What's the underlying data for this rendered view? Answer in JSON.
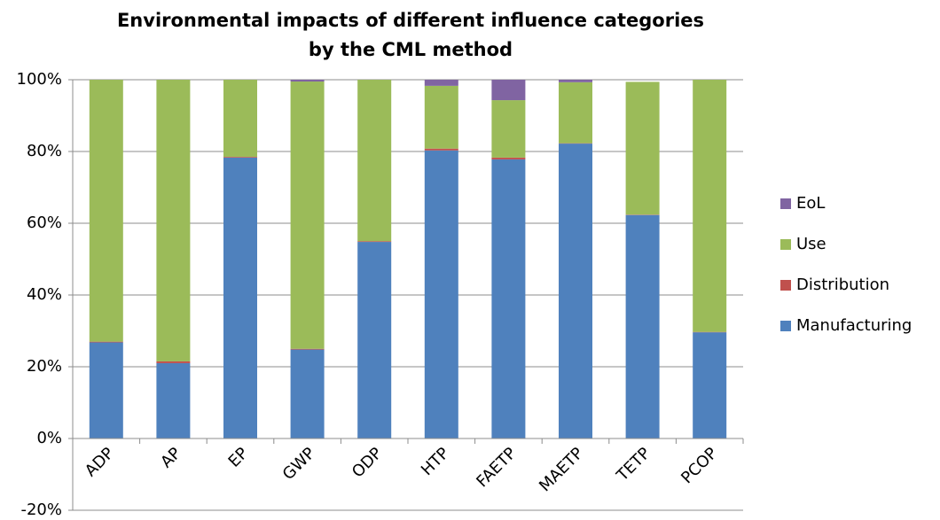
{
  "chart_data": {
    "type": "stacked_bar",
    "title": [
      "Environmental impacts of different influence categories",
      "by the CML method"
    ],
    "categories": [
      "ADP",
      "AP",
      "EP",
      "GWP",
      "ODP",
      "HTP",
      "FAETP",
      "MAETP",
      "TETP",
      "PCOP"
    ],
    "series": [
      {
        "name": "Manufacturing",
        "color": "#4f81bd",
        "values": [
          26.8,
          21,
          78.3,
          24.8,
          54.8,
          80.3,
          77.8,
          82.2,
          62.3,
          29.6
        ]
      },
      {
        "name": "Distribution",
        "color": "#c0504d",
        "values": [
          0.2,
          0.5,
          0.2,
          0.2,
          0.2,
          0.5,
          0.5,
          0.1,
          0.1,
          0.1
        ]
      },
      {
        "name": "Use",
        "color": "#9bbb59",
        "values": [
          73,
          78.5,
          21.5,
          74.5,
          45,
          17.5,
          16,
          17,
          37,
          70.3
        ]
      },
      {
        "name": "EoL",
        "color": "#8064a2",
        "values": [
          0,
          0,
          0,
          0.5,
          0,
          1.7,
          5.7,
          0.7,
          0,
          0
        ]
      }
    ],
    "ylim": [
      -20,
      100
    ],
    "yticks": [
      {
        "value": -20,
        "label": "-20%"
      },
      {
        "value": 0,
        "label": "0%"
      },
      {
        "value": 20,
        "label": "20%"
      },
      {
        "value": 40,
        "label": "40%"
      },
      {
        "value": 60,
        "label": "60%"
      },
      {
        "value": 80,
        "label": "80%"
      },
      {
        "value": 100,
        "label": "100%"
      }
    ],
    "grid": true,
    "legend": "right"
  }
}
